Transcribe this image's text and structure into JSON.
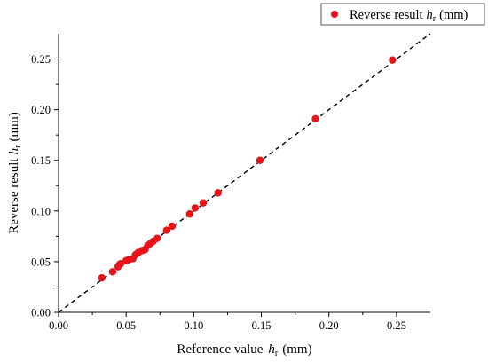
{
  "chart_data": {
    "type": "scatter",
    "xlabel_prefix": "Reference value",
    "xlabel_var": "h",
    "xlabel_sub": "r",
    "xlabel_unit": "(mm)",
    "ylabel_prefix": "Reverse result",
    "ylabel_var": "h",
    "ylabel_sub": "r",
    "ylabel_unit": "(mm)",
    "xlim": [
      0,
      0.275
    ],
    "ylim": [
      0,
      0.275
    ],
    "xticks": [
      0.0,
      0.05,
      0.1,
      0.15,
      0.2,
      0.25
    ],
    "yticks": [
      0.0,
      0.05,
      0.1,
      0.15,
      0.2,
      0.25
    ],
    "xtick_labels": [
      "0.00",
      "0.05",
      "0.10",
      "0.15",
      "0.20",
      "0.25"
    ],
    "ytick_labels": [
      "0.00",
      "0.05",
      "0.10",
      "0.15",
      "0.20",
      "0.25"
    ],
    "grid": false,
    "legend_position": "top-right",
    "reference_line": {
      "style": "dashed",
      "color": "#000000",
      "from": [
        0,
        0
      ],
      "to": [
        0.275,
        0.275
      ]
    },
    "series": [
      {
        "name_prefix": "Reverse result",
        "name_var": "h",
        "name_sub": "r",
        "name_unit": "(mm)",
        "color": "#e8141c",
        "points": [
          [
            0.032,
            0.034
          ],
          [
            0.04,
            0.04
          ],
          [
            0.044,
            0.045
          ],
          [
            0.045,
            0.047
          ],
          [
            0.046,
            0.048
          ],
          [
            0.05,
            0.051
          ],
          [
            0.052,
            0.052
          ],
          [
            0.055,
            0.053
          ],
          [
            0.057,
            0.057
          ],
          [
            0.059,
            0.059
          ],
          [
            0.062,
            0.061
          ],
          [
            0.064,
            0.062
          ],
          [
            0.066,
            0.066
          ],
          [
            0.068,
            0.068
          ],
          [
            0.07,
            0.07
          ],
          [
            0.073,
            0.073
          ],
          [
            0.08,
            0.081
          ],
          [
            0.084,
            0.085
          ],
          [
            0.097,
            0.097
          ],
          [
            0.101,
            0.103
          ],
          [
            0.107,
            0.108
          ],
          [
            0.118,
            0.118
          ],
          [
            0.149,
            0.15
          ],
          [
            0.19,
            0.191
          ],
          [
            0.247,
            0.249
          ]
        ]
      }
    ]
  }
}
